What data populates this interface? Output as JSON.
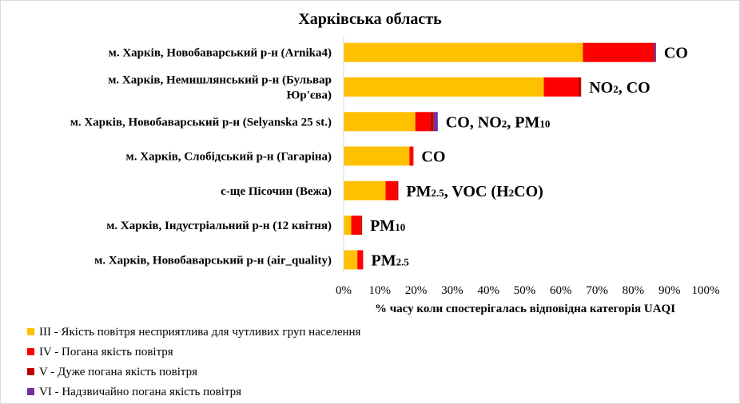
{
  "chart_data": {
    "type": "bar",
    "orientation": "horizontal",
    "stacked": true,
    "title": "Харківська  область",
    "xlabel": "% часу коли спостерігалась відповідна категорія UAQI",
    "xlim": [
      0,
      100
    ],
    "x_ticks": [
      "0%",
      "10%",
      "20%",
      "30%",
      "40%",
      "50%",
      "60%",
      "70%",
      "80%",
      "90%",
      "100%"
    ],
    "grid": false,
    "legend_position": "bottom-left",
    "categories": [
      {
        "lines": [
          "м. Харків, Новобаварський р-н (Arnika4)"
        ],
        "annotation": [
          {
            "t": "CO"
          }
        ]
      },
      {
        "lines": [
          "м. Харків, Немишлянський р-н (Бульвар",
          "Юр'єва)"
        ],
        "annotation": [
          {
            "t": "NO"
          },
          {
            "t": "2",
            "sub": true
          },
          {
            "t": ", CO"
          }
        ]
      },
      {
        "lines": [
          "м. Харків, Новобаварський р-н (Selyanska 25 st.)"
        ],
        "annotation": [
          {
            "t": "CO, NO"
          },
          {
            "t": "2",
            "sub": true
          },
          {
            "t": ", PM"
          },
          {
            "t": "10",
            "sub": true
          }
        ]
      },
      {
        "lines": [
          "м. Харків, Слобідський р-н (Гагаріна)"
        ],
        "annotation": [
          {
            "t": "CO"
          }
        ]
      },
      {
        "lines": [
          "с-ще Пісочин (Вежа)"
        ],
        "annotation": [
          {
            "t": "PM"
          },
          {
            "t": "2.5",
            "sub": true
          },
          {
            "t": ", VOC (H"
          },
          {
            "t": "2",
            "sub": true
          },
          {
            "t": "CO)"
          }
        ]
      },
      {
        "lines": [
          "м. Харків, Індустріальний р-н (12 квітня)"
        ],
        "annotation": [
          {
            "t": "PM"
          },
          {
            "t": "10",
            "sub": true
          }
        ]
      },
      {
        "lines": [
          "м. Харків, Новобаварський р-н (air_quality)"
        ],
        "annotation": [
          {
            "t": "PM"
          },
          {
            "t": "2.5",
            "sub": true
          }
        ]
      }
    ],
    "series": [
      {
        "name": "III - Якість повітря  несприятлива  для чутливих  груп  населення",
        "color": "#FFC000",
        "values": [
          66.1,
          55.3,
          19.8,
          18.2,
          11.6,
          2.1,
          3.8
        ]
      },
      {
        "name": "IV - Погана якість повітря",
        "color": "#FF0000",
        "values": [
          19.4,
          9.6,
          4.1,
          1.1,
          3.1,
          2.6,
          1.6
        ]
      },
      {
        "name": "V - Дуже погана  якість повітря",
        "color": "#C00000",
        "values": [
          0.4,
          0.7,
          1.0,
          0.0,
          0.4,
          0.4,
          0.0
        ]
      },
      {
        "name": "VI - Надзвичайно  погана  якість повітря",
        "color": "#7030A0",
        "values": [
          0.4,
          0.0,
          1.1,
          0.0,
          0.0,
          0.0,
          0.0
        ]
      }
    ]
  }
}
